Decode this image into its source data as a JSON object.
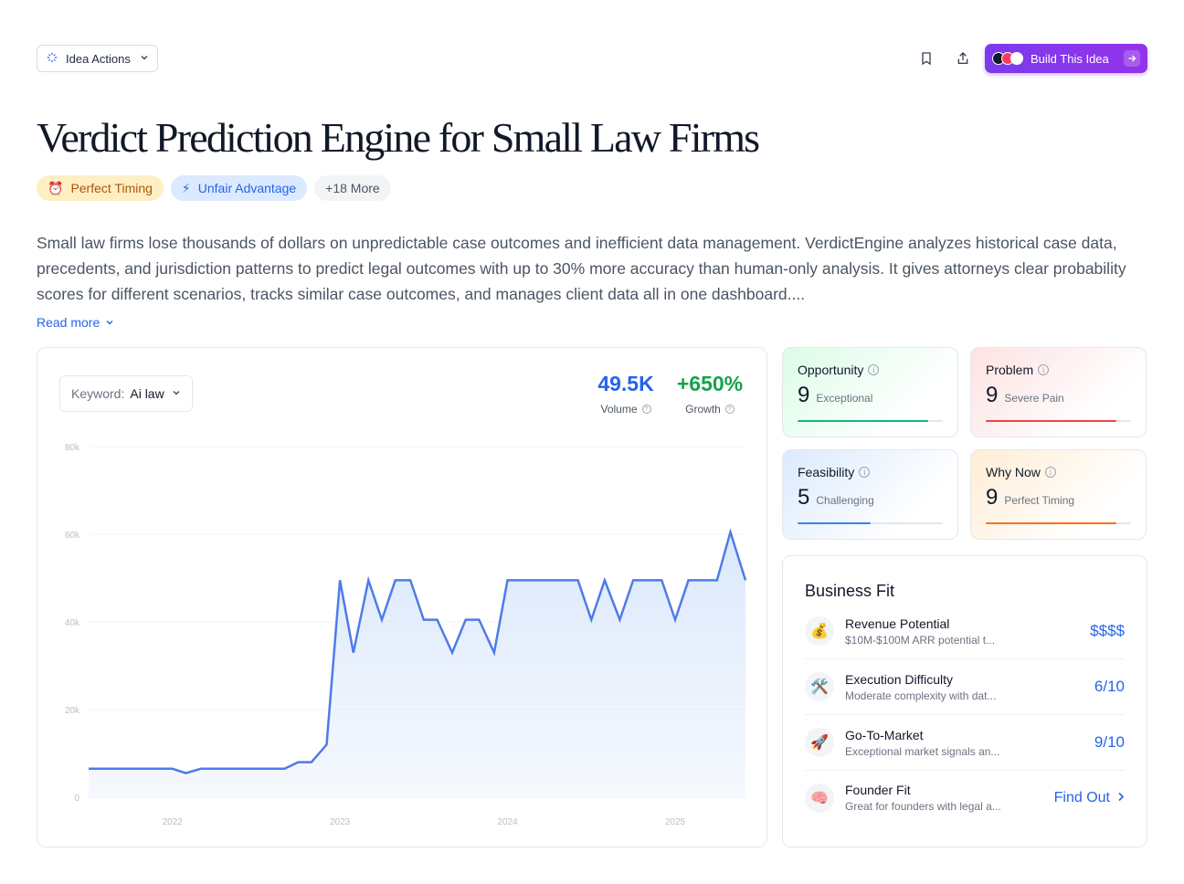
{
  "header": {
    "idea_actions_label": "Idea Actions",
    "build_label": "Build This Idea"
  },
  "title": "Verdict Prediction Engine for Small Law Firms",
  "tags": [
    {
      "icon": "alarm-clock-icon",
      "label": "Perfect Timing"
    },
    {
      "icon": "lightning-icon",
      "label": "Unfair Advantage"
    },
    {
      "label": "+18 More"
    }
  ],
  "description": "Small law firms lose thousands of dollars on unpredictable case outcomes and inefficient data management. VerdictEngine analyzes historical case data, precedents, and jurisdiction patterns to predict legal outcomes with up to 30% more accuracy than human-only analysis. It gives attorneys clear probability scores for different scenarios, tracks similar case outcomes, and manages client data all in one dashboard....",
  "read_more_label": "Read more",
  "trend": {
    "keyword_label": "Keyword:",
    "keyword_value": "Ai law",
    "volume": {
      "value": "49.5K",
      "label": "Volume",
      "color": "#2563eb"
    },
    "growth": {
      "value": "+650%",
      "label": "Growth",
      "color": "#16a34a"
    }
  },
  "chart_data": {
    "type": "area",
    "x_tick_labels": [
      "2022",
      "2023",
      "2024",
      "2025"
    ],
    "y_tick_labels": [
      "0",
      "20k",
      "40k",
      "60k",
      "80k"
    ],
    "ylim": [
      0,
      80000
    ],
    "x_range": [
      2021.5,
      2025.42
    ],
    "line_color": "#4f7be8",
    "fill_color": "#dbe8fb",
    "x": [
      2021.5,
      2021.58,
      2021.67,
      2021.75,
      2021.83,
      2021.92,
      2022.0,
      2022.08,
      2022.17,
      2022.25,
      2022.33,
      2022.42,
      2022.5,
      2022.58,
      2022.67,
      2022.75,
      2022.83,
      2022.92,
      2023.0,
      2023.08,
      2023.17,
      2023.25,
      2023.33,
      2023.42,
      2023.5,
      2023.58,
      2023.67,
      2023.75,
      2023.83,
      2023.92,
      2024.0,
      2024.08,
      2024.17,
      2024.25,
      2024.33,
      2024.42,
      2024.5,
      2024.58,
      2024.67,
      2024.75,
      2024.83,
      2024.92,
      2025.0,
      2025.08,
      2025.17,
      2025.25,
      2025.33,
      2025.42
    ],
    "values": [
      6500,
      6500,
      6500,
      6500,
      6500,
      6500,
      6500,
      5500,
      6500,
      6500,
      6500,
      6500,
      6500,
      6500,
      6500,
      8000,
      8000,
      12000,
      49500,
      33000,
      49500,
      40500,
      49500,
      49500,
      40500,
      40500,
      33000,
      40500,
      40500,
      33000,
      49500,
      49500,
      49500,
      49500,
      49500,
      49500,
      40500,
      49500,
      40500,
      49500,
      49500,
      49500,
      40500,
      49500,
      49500,
      49500,
      60500,
      49500
    ]
  },
  "scores": [
    {
      "title": "Opportunity",
      "value": "9",
      "label": "Exceptional",
      "fill": 0.9,
      "color": "#10b981"
    },
    {
      "title": "Problem",
      "value": "9",
      "label": "Severe Pain",
      "fill": 0.9,
      "color": "#ef4444"
    },
    {
      "title": "Feasibility",
      "value": "5",
      "label": "Challenging",
      "fill": 0.5,
      "color": "#3b82f6"
    },
    {
      "title": "Why Now",
      "value": "9",
      "label": "Perfect Timing",
      "fill": 0.9,
      "color": "#f97316"
    }
  ],
  "business_fit": {
    "title": "Business Fit",
    "rows": [
      {
        "icon": "money-bag-icon",
        "name": "Revenue Potential",
        "sub": "$10M-$100M ARR potential t...",
        "value": "$$$$"
      },
      {
        "icon": "tools-icon",
        "name": "Execution Difficulty",
        "sub": "Moderate complexity with dat...",
        "value": "6/10"
      },
      {
        "icon": "rocket-icon",
        "name": "Go-To-Market",
        "sub": "Exceptional market signals an...",
        "value": "9/10"
      },
      {
        "icon": "brain-icon",
        "name": "Founder Fit",
        "sub": "Great for founders with legal a...",
        "value": "Find Out"
      }
    ]
  }
}
